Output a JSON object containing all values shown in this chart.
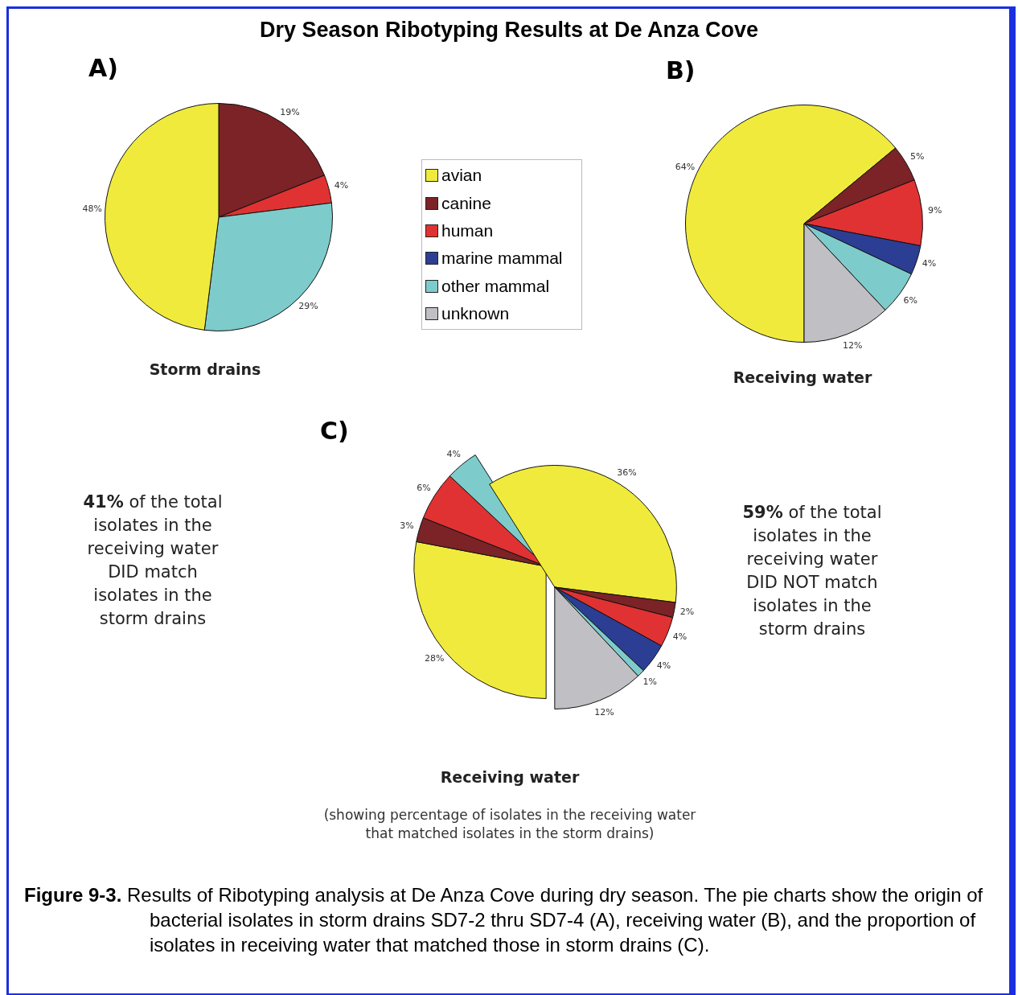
{
  "chart_data": [
    {
      "type": "pie",
      "title": "A)",
      "xlabel": "Storm drains",
      "categories": [
        null,
        null,
        null,
        null
      ],
      "values": [
        19,
        4,
        29,
        48
      ],
      "value_labels": [
        "19%",
        "4%",
        "29%",
        "48%"
      ],
      "colors": [
        "#7b2326",
        "#e03232",
        "#7ecbcb",
        "#f0ea3c"
      ],
      "annotations": [
        "Dry Season Ribotyping Results at De Anza Cove",
        "Figure 9-3. Results of Ribotyping analysis at De Anza Cove during dry season.  The pie charts show the origin of bacterial isolates in storm drains SD7-2 thru SD7-4 (A), receiving water (B), and the proportion of isolates in receiving water that matched those in storm drains (C)."
      ]
    },
    {
      "type": "pie",
      "title": "B)",
      "xlabel": "Receiving water",
      "legend": "left",
      "categories": [
        "avian",
        "canine",
        "human",
        "marine mammal",
        "other mammal",
        "unknown"
      ],
      "values": [
        64,
        5,
        9,
        4,
        6,
        12
      ],
      "value_labels": [
        "64%",
        "5%",
        "9%",
        "4%",
        "6%",
        "12%"
      ],
      "colors": [
        "#f0ea3c",
        "#7b2326",
        "#e03232",
        "#2c3e93",
        "#7ecbcb",
        "#c0c0c4"
      ]
    },
    {
      "type": "pie",
      "title": "C)",
      "xlabel": "Receiving water",
      "categories": [
        null,
        null,
        null,
        null
      ],
      "values": [
        28,
        3,
        6,
        4
      ],
      "value_labels": [
        "28%",
        "3%",
        "6%",
        "4%"
      ],
      "colors": [
        "#f0ea3c",
        "#7b2326",
        "#e03232",
        "#7ecbcb"
      ],
      "annotations": [
        "(showing percentage of isolates in the receiving water that matched isolates in the storm drains)",
        "41% of the total isolates in the receiving water DID match isolates in the storm drains"
      ]
    },
    {
      "type": "pie",
      "categories": [
        null,
        null,
        null,
        null,
        null,
        null
      ],
      "values": [
        36,
        2,
        4,
        4,
        1,
        12
      ],
      "value_labels": [
        "36%",
        "2%",
        "4%",
        "4%",
        "1%",
        "12%"
      ],
      "colors": [
        "#f0ea3c",
        "#7b2326",
        "#e03232",
        "#2c3e93",
        "#7ecbcb",
        "#c0c0c4"
      ],
      "annotations": [
        "59% of the total isolates in the receiving water DID NOT match isolates in the storm drains"
      ]
    }
  ]
}
